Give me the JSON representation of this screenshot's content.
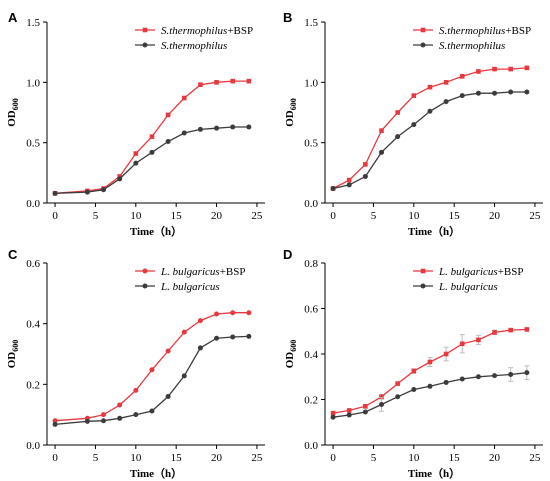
{
  "colors": {
    "series_a": "#e8383d",
    "series_b": "#3c3c3c",
    "axis": "#000000",
    "errorbar": "#bdbdbd"
  },
  "chart_data": [
    {
      "panel": "A",
      "type": "line",
      "xlabel": "Time（h）",
      "ylabel": "OD600",
      "xlim": [
        -1,
        26
      ],
      "ylim": [
        0,
        1.5
      ],
      "xticks": [
        0,
        5,
        10,
        15,
        20,
        25
      ],
      "yticks": [
        0.0,
        0.5,
        1.0,
        1.5
      ],
      "ytick_labels": [
        "0.0",
        "0.5",
        "1.0",
        "1.5"
      ],
      "legend_position": "top-right",
      "x": [
        0,
        4,
        6,
        8,
        10,
        12,
        14,
        16,
        18,
        20,
        22,
        24
      ],
      "series": [
        {
          "name_italic": "S.thermophilus",
          "name_suffix": "+BSP",
          "marker": "square",
          "values": [
            0.08,
            0.1,
            0.12,
            0.22,
            0.41,
            0.55,
            0.73,
            0.87,
            0.98,
            1.0,
            1.01,
            1.01
          ]
        },
        {
          "name_italic": "S.thermophilus",
          "name_suffix": "",
          "marker": "circle",
          "values": [
            0.08,
            0.09,
            0.11,
            0.2,
            0.33,
            0.42,
            0.51,
            0.58,
            0.61,
            0.62,
            0.63,
            0.63
          ]
        }
      ]
    },
    {
      "panel": "B",
      "type": "line",
      "xlabel": "Time（h）",
      "ylabel": "OD600",
      "xlim": [
        -1,
        26
      ],
      "ylim": [
        0,
        1.5
      ],
      "xticks": [
        0,
        5,
        10,
        15,
        20,
        25
      ],
      "yticks": [
        0.0,
        0.5,
        1.0,
        1.5
      ],
      "ytick_labels": [
        "0.0",
        "0.5",
        "1.0",
        "1.5"
      ],
      "legend_position": "top-right",
      "x": [
        0,
        2,
        4,
        6,
        8,
        10,
        12,
        14,
        16,
        18,
        20,
        22,
        24
      ],
      "series": [
        {
          "name_italic": "S.thermophilus",
          "name_suffix": "+BSP",
          "marker": "square",
          "values": [
            0.12,
            0.19,
            0.32,
            0.6,
            0.75,
            0.89,
            0.96,
            1.0,
            1.05,
            1.09,
            1.11,
            1.11,
            1.12
          ]
        },
        {
          "name_italic": "S.thermophilus",
          "name_suffix": "",
          "marker": "circle",
          "values": [
            0.12,
            0.15,
            0.22,
            0.42,
            0.55,
            0.65,
            0.76,
            0.84,
            0.89,
            0.91,
            0.91,
            0.92,
            0.92
          ]
        }
      ]
    },
    {
      "panel": "C",
      "type": "line",
      "xlabel": "Time（h）",
      "ylabel": "OD600",
      "xlim": [
        -1,
        26
      ],
      "ylim": [
        0,
        0.6
      ],
      "xticks": [
        0,
        5,
        10,
        15,
        20,
        25
      ],
      "yticks": [
        0.0,
        0.2,
        0.4,
        0.6
      ],
      "ytick_labels": [
        "0.0",
        "0.2",
        "0.4",
        "0.6"
      ],
      "legend_position": "top-right",
      "series": [
        {
          "name_italic": "L. bulgaricus",
          "name_suffix": "+BSP",
          "marker": "circle",
          "x": [
            0,
            4,
            6,
            8,
            10,
            12,
            14,
            16,
            18,
            20,
            22,
            24
          ],
          "values": [
            0.08,
            0.088,
            0.1,
            0.132,
            0.18,
            0.248,
            0.31,
            0.372,
            0.41,
            0.432,
            0.436,
            0.436
          ]
        },
        {
          "name_italic": "L. bulgaricus",
          "name_suffix": "",
          "marker": "circle",
          "x": [
            0,
            4,
            6,
            8,
            10,
            12,
            14,
            16,
            18,
            20,
            22,
            24
          ],
          "values": [
            0.068,
            0.078,
            0.08,
            0.088,
            0.1,
            0.112,
            0.16,
            0.228,
            0.32,
            0.352,
            0.356,
            0.358
          ]
        }
      ]
    },
    {
      "panel": "D",
      "type": "line",
      "xlabel": "Time（h）",
      "ylabel": "OD600",
      "xlim": [
        -1,
        26
      ],
      "ylim": [
        0,
        0.8
      ],
      "xticks": [
        0,
        5,
        10,
        15,
        20,
        25
      ],
      "yticks": [
        0.0,
        0.2,
        0.4,
        0.6,
        0.8
      ],
      "ytick_labels": [
        "0.0",
        "0.2",
        "0.4",
        "0.6",
        "0.8"
      ],
      "legend_position": "top-right",
      "x": [
        0,
        2,
        4,
        6,
        8,
        10,
        12,
        14,
        16,
        18,
        20,
        22,
        24
      ],
      "series": [
        {
          "name_italic": "L. bulgaricus",
          "name_suffix": "+BSP",
          "marker": "square",
          "values": [
            0.14,
            0.152,
            0.17,
            0.212,
            0.27,
            0.325,
            0.365,
            0.4,
            0.445,
            0.462,
            0.495,
            0.505,
            0.508
          ],
          "errors": [
            0.0,
            0.0,
            0.0,
            0.01,
            0.0,
            0.01,
            0.02,
            0.03,
            0.04,
            0.02,
            0.01,
            0.0,
            0.0
          ]
        },
        {
          "name_italic": "L. bulgaricus",
          "name_suffix": "",
          "marker": "circle",
          "values": [
            0.122,
            0.132,
            0.145,
            0.178,
            0.212,
            0.244,
            0.258,
            0.275,
            0.29,
            0.3,
            0.305,
            0.31,
            0.318
          ],
          "errors": [
            0.0,
            0.0,
            0.0,
            0.03,
            0.0,
            0.0,
            0.0,
            0.0,
            0.0,
            0.0,
            0.0,
            0.03,
            0.03
          ]
        }
      ]
    }
  ]
}
